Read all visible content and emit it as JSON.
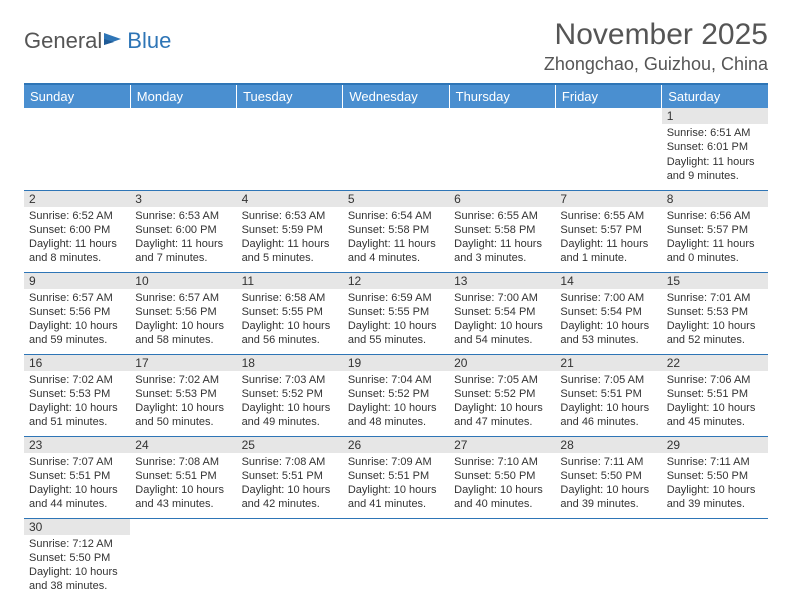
{
  "logo": {
    "text1": "General",
    "text2": "Blue"
  },
  "title": "November 2025",
  "subtitle": "Zhongchao, Guizhou, China",
  "colors": {
    "header_bg": "#4a8fd0",
    "border": "#2e75b6",
    "daynum_bg": "#e6e6e6",
    "text": "#333333",
    "logo_blue": "#2e75b6"
  },
  "day_headers": [
    "Sunday",
    "Monday",
    "Tuesday",
    "Wednesday",
    "Thursday",
    "Friday",
    "Saturday"
  ],
  "weeks": [
    [
      null,
      null,
      null,
      null,
      null,
      null,
      {
        "n": "1",
        "sunrise": "Sunrise: 6:51 AM",
        "sunset": "Sunset: 6:01 PM",
        "daylight": "Daylight: 11 hours and 9 minutes."
      }
    ],
    [
      {
        "n": "2",
        "sunrise": "Sunrise: 6:52 AM",
        "sunset": "Sunset: 6:00 PM",
        "daylight": "Daylight: 11 hours and 8 minutes."
      },
      {
        "n": "3",
        "sunrise": "Sunrise: 6:53 AM",
        "sunset": "Sunset: 6:00 PM",
        "daylight": "Daylight: 11 hours and 7 minutes."
      },
      {
        "n": "4",
        "sunrise": "Sunrise: 6:53 AM",
        "sunset": "Sunset: 5:59 PM",
        "daylight": "Daylight: 11 hours and 5 minutes."
      },
      {
        "n": "5",
        "sunrise": "Sunrise: 6:54 AM",
        "sunset": "Sunset: 5:58 PM",
        "daylight": "Daylight: 11 hours and 4 minutes."
      },
      {
        "n": "6",
        "sunrise": "Sunrise: 6:55 AM",
        "sunset": "Sunset: 5:58 PM",
        "daylight": "Daylight: 11 hours and 3 minutes."
      },
      {
        "n": "7",
        "sunrise": "Sunrise: 6:55 AM",
        "sunset": "Sunset: 5:57 PM",
        "daylight": "Daylight: 11 hours and 1 minute."
      },
      {
        "n": "8",
        "sunrise": "Sunrise: 6:56 AM",
        "sunset": "Sunset: 5:57 PM",
        "daylight": "Daylight: 11 hours and 0 minutes."
      }
    ],
    [
      {
        "n": "9",
        "sunrise": "Sunrise: 6:57 AM",
        "sunset": "Sunset: 5:56 PM",
        "daylight": "Daylight: 10 hours and 59 minutes."
      },
      {
        "n": "10",
        "sunrise": "Sunrise: 6:57 AM",
        "sunset": "Sunset: 5:56 PM",
        "daylight": "Daylight: 10 hours and 58 minutes."
      },
      {
        "n": "11",
        "sunrise": "Sunrise: 6:58 AM",
        "sunset": "Sunset: 5:55 PM",
        "daylight": "Daylight: 10 hours and 56 minutes."
      },
      {
        "n": "12",
        "sunrise": "Sunrise: 6:59 AM",
        "sunset": "Sunset: 5:55 PM",
        "daylight": "Daylight: 10 hours and 55 minutes."
      },
      {
        "n": "13",
        "sunrise": "Sunrise: 7:00 AM",
        "sunset": "Sunset: 5:54 PM",
        "daylight": "Daylight: 10 hours and 54 minutes."
      },
      {
        "n": "14",
        "sunrise": "Sunrise: 7:00 AM",
        "sunset": "Sunset: 5:54 PM",
        "daylight": "Daylight: 10 hours and 53 minutes."
      },
      {
        "n": "15",
        "sunrise": "Sunrise: 7:01 AM",
        "sunset": "Sunset: 5:53 PM",
        "daylight": "Daylight: 10 hours and 52 minutes."
      }
    ],
    [
      {
        "n": "16",
        "sunrise": "Sunrise: 7:02 AM",
        "sunset": "Sunset: 5:53 PM",
        "daylight": "Daylight: 10 hours and 51 minutes."
      },
      {
        "n": "17",
        "sunrise": "Sunrise: 7:02 AM",
        "sunset": "Sunset: 5:53 PM",
        "daylight": "Daylight: 10 hours and 50 minutes."
      },
      {
        "n": "18",
        "sunrise": "Sunrise: 7:03 AM",
        "sunset": "Sunset: 5:52 PM",
        "daylight": "Daylight: 10 hours and 49 minutes."
      },
      {
        "n": "19",
        "sunrise": "Sunrise: 7:04 AM",
        "sunset": "Sunset: 5:52 PM",
        "daylight": "Daylight: 10 hours and 48 minutes."
      },
      {
        "n": "20",
        "sunrise": "Sunrise: 7:05 AM",
        "sunset": "Sunset: 5:52 PM",
        "daylight": "Daylight: 10 hours and 47 minutes."
      },
      {
        "n": "21",
        "sunrise": "Sunrise: 7:05 AM",
        "sunset": "Sunset: 5:51 PM",
        "daylight": "Daylight: 10 hours and 46 minutes."
      },
      {
        "n": "22",
        "sunrise": "Sunrise: 7:06 AM",
        "sunset": "Sunset: 5:51 PM",
        "daylight": "Daylight: 10 hours and 45 minutes."
      }
    ],
    [
      {
        "n": "23",
        "sunrise": "Sunrise: 7:07 AM",
        "sunset": "Sunset: 5:51 PM",
        "daylight": "Daylight: 10 hours and 44 minutes."
      },
      {
        "n": "24",
        "sunrise": "Sunrise: 7:08 AM",
        "sunset": "Sunset: 5:51 PM",
        "daylight": "Daylight: 10 hours and 43 minutes."
      },
      {
        "n": "25",
        "sunrise": "Sunrise: 7:08 AM",
        "sunset": "Sunset: 5:51 PM",
        "daylight": "Daylight: 10 hours and 42 minutes."
      },
      {
        "n": "26",
        "sunrise": "Sunrise: 7:09 AM",
        "sunset": "Sunset: 5:51 PM",
        "daylight": "Daylight: 10 hours and 41 minutes."
      },
      {
        "n": "27",
        "sunrise": "Sunrise: 7:10 AM",
        "sunset": "Sunset: 5:50 PM",
        "daylight": "Daylight: 10 hours and 40 minutes."
      },
      {
        "n": "28",
        "sunrise": "Sunrise: 7:11 AM",
        "sunset": "Sunset: 5:50 PM",
        "daylight": "Daylight: 10 hours and 39 minutes."
      },
      {
        "n": "29",
        "sunrise": "Sunrise: 7:11 AM",
        "sunset": "Sunset: 5:50 PM",
        "daylight": "Daylight: 10 hours and 39 minutes."
      }
    ],
    [
      {
        "n": "30",
        "sunrise": "Sunrise: 7:12 AM",
        "sunset": "Sunset: 5:50 PM",
        "daylight": "Daylight: 10 hours and 38 minutes."
      },
      null,
      null,
      null,
      null,
      null,
      null
    ]
  ]
}
